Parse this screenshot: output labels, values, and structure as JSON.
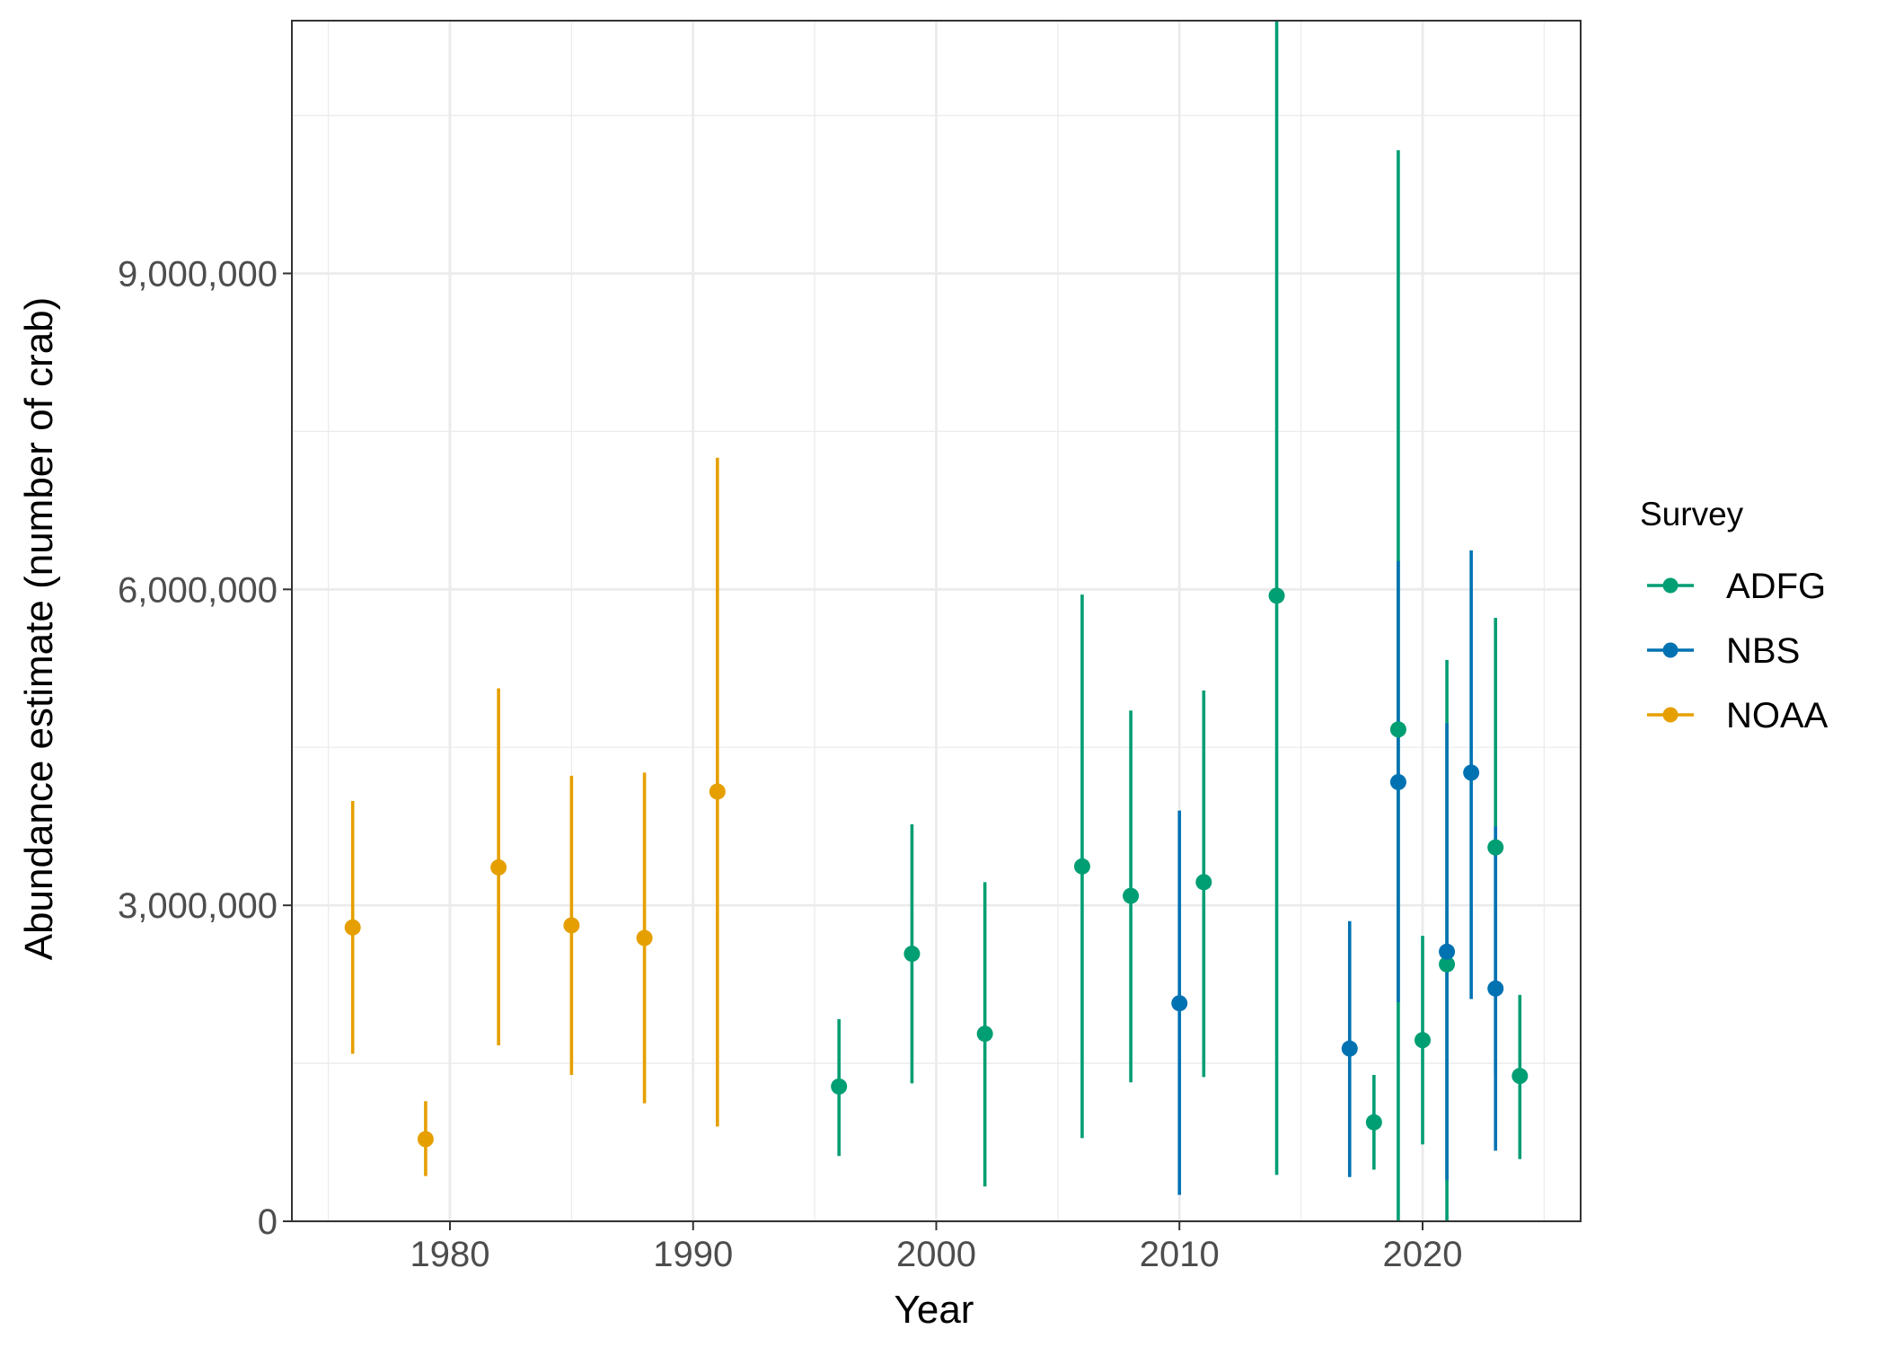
{
  "chart_data": {
    "type": "scatter",
    "title": "",
    "xlabel": "Year",
    "ylabel": "Abundance estimate (number of crab)",
    "xlim": [
      1973.5,
      2026.5
    ],
    "ylim": [
      0,
      11400000
    ],
    "x_ticks": [
      1980,
      1990,
      2000,
      2010,
      2020
    ],
    "x_tick_labels": [
      "1980",
      "1990",
      "2000",
      "2010",
      "2020"
    ],
    "x_minor_ticks": [
      1975,
      1985,
      1995,
      2005,
      2015,
      2025
    ],
    "y_ticks": [
      0,
      3000000,
      6000000,
      9000000
    ],
    "y_tick_labels": [
      "0",
      "3,000,000",
      "6,000,000",
      "9,000,000"
    ],
    "y_minor_ticks": [
      1500000,
      4500000,
      7500000,
      10500000
    ],
    "grid": true,
    "error_bars": true,
    "legend": {
      "title": "Survey",
      "position": "right"
    },
    "series": [
      {
        "name": "ADFG",
        "color": "#009E73",
        "points": [
          {
            "x": 1996,
            "y": 1280000,
            "lo": 620000,
            "hi": 1920000
          },
          {
            "x": 1999,
            "y": 2540000,
            "lo": 1310000,
            "hi": 3770000
          },
          {
            "x": 2002,
            "y": 1780000,
            "lo": 330000,
            "hi": 3220000
          },
          {
            "x": 2006,
            "y": 3370000,
            "lo": 790000,
            "hi": 5950000
          },
          {
            "x": 2008,
            "y": 3090000,
            "lo": 1320000,
            "hi": 4850000
          },
          {
            "x": 2011,
            "y": 3220000,
            "lo": 1370000,
            "hi": 5040000
          },
          {
            "x": 2014,
            "y": 5940000,
            "lo": 440000,
            "hi": 11400000
          },
          {
            "x": 2018,
            "y": 940000,
            "lo": 490000,
            "hi": 1390000
          },
          {
            "x": 2019,
            "y": 4670000,
            "lo": 0,
            "hi": 10170000
          },
          {
            "x": 2020,
            "y": 1720000,
            "lo": 730000,
            "hi": 2710000
          },
          {
            "x": 2021,
            "y": 2440000,
            "lo": 0,
            "hi": 5330000
          },
          {
            "x": 2023,
            "y": 3550000,
            "lo": 1380000,
            "hi": 5730000
          },
          {
            "x": 2024,
            "y": 1380000,
            "lo": 590000,
            "hi": 2150000
          }
        ]
      },
      {
        "name": "NBS",
        "color": "#0072B2",
        "points": [
          {
            "x": 2010,
            "y": 2070000,
            "lo": 250000,
            "hi": 3900000
          },
          {
            "x": 2017,
            "y": 1640000,
            "lo": 420000,
            "hi": 2850000
          },
          {
            "x": 2019,
            "y": 4170000,
            "lo": 2080000,
            "hi": 6270000
          },
          {
            "x": 2021,
            "y": 2560000,
            "lo": 390000,
            "hi": 4730000
          },
          {
            "x": 2022,
            "y": 4260000,
            "lo": 2110000,
            "hi": 6370000
          },
          {
            "x": 2023,
            "y": 2210000,
            "lo": 670000,
            "hi": 3750000
          }
        ]
      },
      {
        "name": "NOAA",
        "color": "#E69F00",
        "points": [
          {
            "x": 1976,
            "y": 2790000,
            "lo": 1590000,
            "hi": 3990000
          },
          {
            "x": 1979,
            "y": 780000,
            "lo": 430000,
            "hi": 1140000
          },
          {
            "x": 1982,
            "y": 3360000,
            "lo": 1670000,
            "hi": 5060000
          },
          {
            "x": 1985,
            "y": 2810000,
            "lo": 1390000,
            "hi": 4230000
          },
          {
            "x": 1988,
            "y": 2690000,
            "lo": 1120000,
            "hi": 4260000
          },
          {
            "x": 1991,
            "y": 4080000,
            "lo": 900000,
            "hi": 7250000
          }
        ]
      }
    ]
  }
}
